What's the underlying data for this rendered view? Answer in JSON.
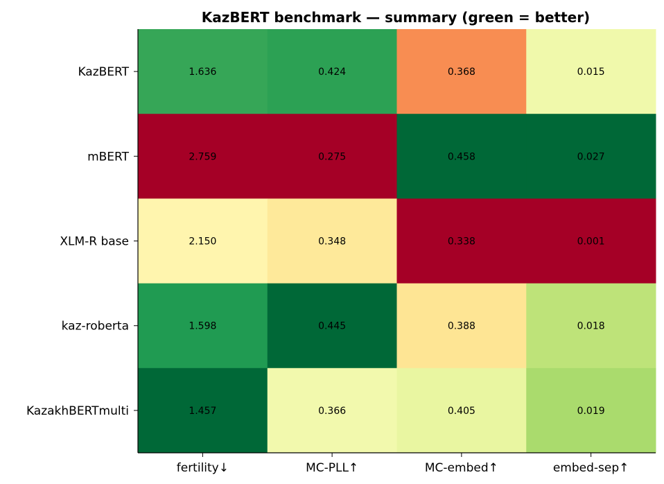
{
  "chart_data": {
    "type": "heatmap",
    "title": "KazBERT benchmark — summary (green = better)",
    "rows": [
      "KazBERT",
      "mBERT",
      "XLM-R base",
      "kaz-roberta",
      "KazakhBERTmulti"
    ],
    "columns": [
      "fertility↓",
      "MC-PLL↑",
      "MC-embed↑",
      "embed-sep↑"
    ],
    "higher_is_better": [
      false,
      true,
      true,
      true
    ],
    "values": [
      [
        1.636,
        0.424,
        0.368,
        0.015
      ],
      [
        2.759,
        0.275,
        0.458,
        0.027
      ],
      [
        2.15,
        0.348,
        0.338,
        0.001
      ],
      [
        1.598,
        0.445,
        0.388,
        0.018
      ],
      [
        1.457,
        0.366,
        0.405,
        0.019
      ]
    ],
    "value_labels": [
      [
        "1.636",
        "0.424",
        "0.368",
        "0.015"
      ],
      [
        "2.759",
        "0.275",
        "0.458",
        "0.027"
      ],
      [
        "2.150",
        "0.348",
        "0.338",
        "0.001"
      ],
      [
        "1.598",
        "0.445",
        "0.388",
        "0.018"
      ],
      [
        "1.457",
        "0.366",
        "0.405",
        "0.019"
      ]
    ],
    "colormap": "RdYlGn",
    "colors": {
      "worst": "#a50026",
      "best": "#006837"
    }
  }
}
